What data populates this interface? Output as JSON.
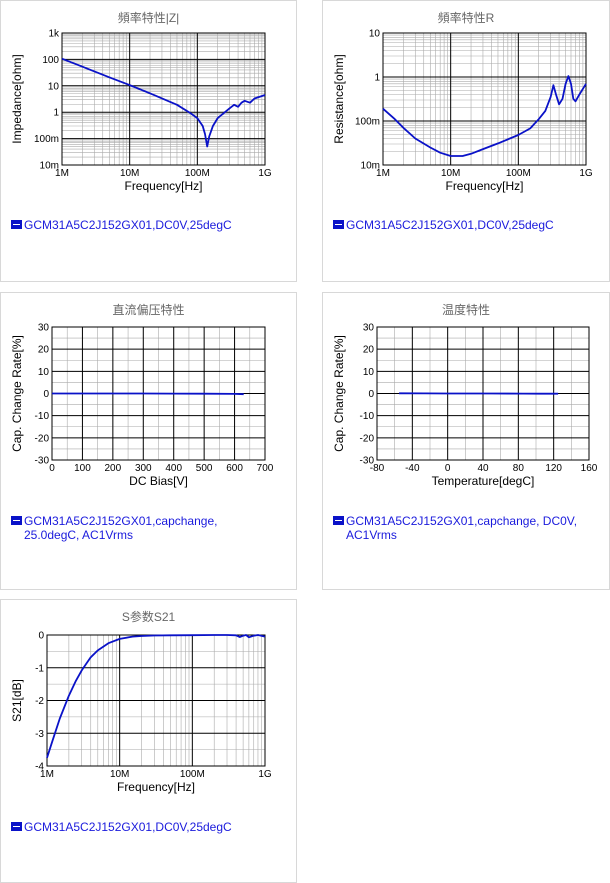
{
  "colors": {
    "line": "#0a12c8",
    "grid": "#aaaaaa",
    "major": "#000000",
    "legend_text": "#1a1adc"
  },
  "chart_data": [
    {
      "id": "impedance",
      "type": "line",
      "title": "頻率特性|Z|",
      "xlabel": "Frequency[Hz]",
      "ylabel": "Impedance[ohm]",
      "xscale": "log",
      "yscale": "log",
      "xlim": [
        1000000,
        1000000000
      ],
      "ylim": [
        0.01,
        1000
      ],
      "xticks": [
        1000000,
        10000000,
        100000000,
        1000000000
      ],
      "xtick_labels": [
        "1M",
        "10M",
        "100M",
        "1G"
      ],
      "yticks": [
        0.01,
        0.1,
        1,
        10,
        100,
        1000
      ],
      "ytick_labels": [
        "10m",
        "100m",
        "1",
        "10",
        "100",
        "1k"
      ],
      "grid": true,
      "legend": "GCM31A5C2J152GX01,DC0V,25degC",
      "x": [
        1000000,
        2000000,
        5000000,
        10000000,
        20000000,
        50000000,
        80000000,
        100000000,
        120000000,
        130000000,
        140000000,
        150000000,
        170000000,
        200000000,
        300000000,
        350000000,
        400000000,
        450000000,
        500000000,
        600000000,
        700000000,
        1000000000
      ],
      "y": [
        106,
        53,
        21,
        10.6,
        5.2,
        1.9,
        0.9,
        0.6,
        0.3,
        0.15,
        0.05,
        0.12,
        0.3,
        0.6,
        1.4,
        1.9,
        1.6,
        2.3,
        2.7,
        2.3,
        3.3,
        4.5
      ]
    },
    {
      "id": "resistance",
      "type": "line",
      "title": "頻率特性R",
      "xlabel": "Frequency[Hz]",
      "ylabel": "Resistance[ohm]",
      "xscale": "log",
      "yscale": "log",
      "xlim": [
        1000000,
        1000000000
      ],
      "ylim": [
        0.01,
        10
      ],
      "xticks": [
        1000000,
        10000000,
        100000000,
        1000000000
      ],
      "xtick_labels": [
        "1M",
        "10M",
        "100M",
        "1G"
      ],
      "yticks": [
        0.01,
        0.1,
        1,
        10
      ],
      "ytick_labels": [
        "10m",
        "100m",
        "1",
        "10"
      ],
      "grid": true,
      "legend": "GCM31A5C2J152GX01,DC0V,25degC",
      "x": [
        1000000,
        1500000,
        2000000,
        3000000,
        5000000,
        7000000,
        10000000,
        15000000,
        20000000,
        30000000,
        50000000,
        100000000,
        150000000,
        200000000,
        250000000,
        300000000,
        330000000,
        360000000,
        400000000,
        450000000,
        500000000,
        550000000,
        600000000,
        650000000,
        700000000,
        800000000,
        1000000000
      ],
      "y": [
        0.19,
        0.11,
        0.07,
        0.04,
        0.025,
        0.019,
        0.016,
        0.016,
        0.018,
        0.023,
        0.031,
        0.048,
        0.068,
        0.11,
        0.17,
        0.35,
        0.65,
        0.4,
        0.24,
        0.32,
        0.7,
        1.05,
        0.7,
        0.32,
        0.28,
        0.4,
        0.7
      ]
    },
    {
      "id": "dcbias",
      "type": "line",
      "title": "直流偏压特性",
      "xlabel": "DC Bias[V]",
      "ylabel": "Cap. Change Rate[%]",
      "xscale": "linear",
      "yscale": "linear",
      "xlim": [
        0,
        700
      ],
      "ylim": [
        -30,
        30
      ],
      "xticks": [
        0,
        100,
        200,
        300,
        400,
        500,
        600,
        700
      ],
      "xtick_labels": [
        "0",
        "100",
        "200",
        "300",
        "400",
        "500",
        "600",
        "700"
      ],
      "yticks": [
        -30,
        -20,
        -10,
        0,
        10,
        20,
        30
      ],
      "ytick_labels": [
        "-30",
        "-20",
        "-10",
        "0",
        "10",
        "20",
        "30"
      ],
      "grid": true,
      "legend": "GCM31A5C2J152GX01,capchange, 25.0degC, AC1Vrms",
      "x": [
        0,
        100,
        200,
        300,
        400,
        500,
        600,
        630
      ],
      "y": [
        0,
        0,
        0,
        0,
        -0.05,
        -0.1,
        -0.2,
        -0.3
      ]
    },
    {
      "id": "temperature",
      "type": "line",
      "title": "温度特性",
      "xlabel": "Temperature[degC]",
      "ylabel": "Cap. Change Rate[%]",
      "xscale": "linear",
      "yscale": "linear",
      "xlim": [
        -80,
        160
      ],
      "ylim": [
        -30,
        30
      ],
      "xticks": [
        -80,
        -40,
        0,
        40,
        80,
        120,
        160
      ],
      "xtick_labels": [
        "-80",
        "-40",
        "0",
        "40",
        "80",
        "120",
        "160"
      ],
      "yticks": [
        -30,
        -20,
        -10,
        0,
        10,
        20,
        30
      ],
      "ytick_labels": [
        "-30",
        "-20",
        "-10",
        "0",
        "10",
        "20",
        "30"
      ],
      "grid": true,
      "legend": "GCM31A5C2J152GX01,capchange, DC0V, AC1Vrms",
      "x": [
        -55,
        -25,
        0,
        25,
        50,
        85,
        105,
        125
      ],
      "y": [
        0.1,
        0.05,
        0.02,
        0,
        -0.02,
        -0.05,
        -0.07,
        -0.1
      ]
    },
    {
      "id": "s21",
      "type": "line",
      "title": "S参数S21",
      "xlabel": "Frequency[Hz]",
      "ylabel": "S21[dB]",
      "xscale": "log",
      "yscale": "linear",
      "xlim": [
        1000000,
        1000000000
      ],
      "ylim": [
        -4,
        0
      ],
      "xticks": [
        1000000,
        10000000,
        100000000,
        1000000000
      ],
      "xtick_labels": [
        "1M",
        "10M",
        "100M",
        "1G"
      ],
      "yticks": [
        -4,
        -3,
        -2,
        -1,
        0
      ],
      "ytick_labels": [
        "-4",
        "-3",
        "-2",
        "-1",
        "0"
      ],
      "grid": true,
      "legend": "GCM31A5C2J152GX01,DC0V,25degC",
      "x": [
        1000000,
        1200000,
        1500000,
        2000000,
        2500000,
        3000000,
        4000000,
        5000000,
        7000000,
        10000000,
        15000000,
        20000000,
        30000000,
        50000000,
        100000000,
        200000000,
        300000000,
        400000000,
        450000000,
        500000000,
        550000000,
        600000000,
        700000000,
        800000000,
        1000000000
      ],
      "y": [
        -3.75,
        -3.2,
        -2.55,
        -1.85,
        -1.4,
        -1.08,
        -0.68,
        -0.47,
        -0.25,
        -0.12,
        -0.05,
        -0.03,
        -0.015,
        -0.01,
        -0.005,
        0,
        0,
        -0.01,
        -0.06,
        -0.02,
        0,
        -0.07,
        -0.02,
        0,
        -0.05
      ]
    }
  ]
}
